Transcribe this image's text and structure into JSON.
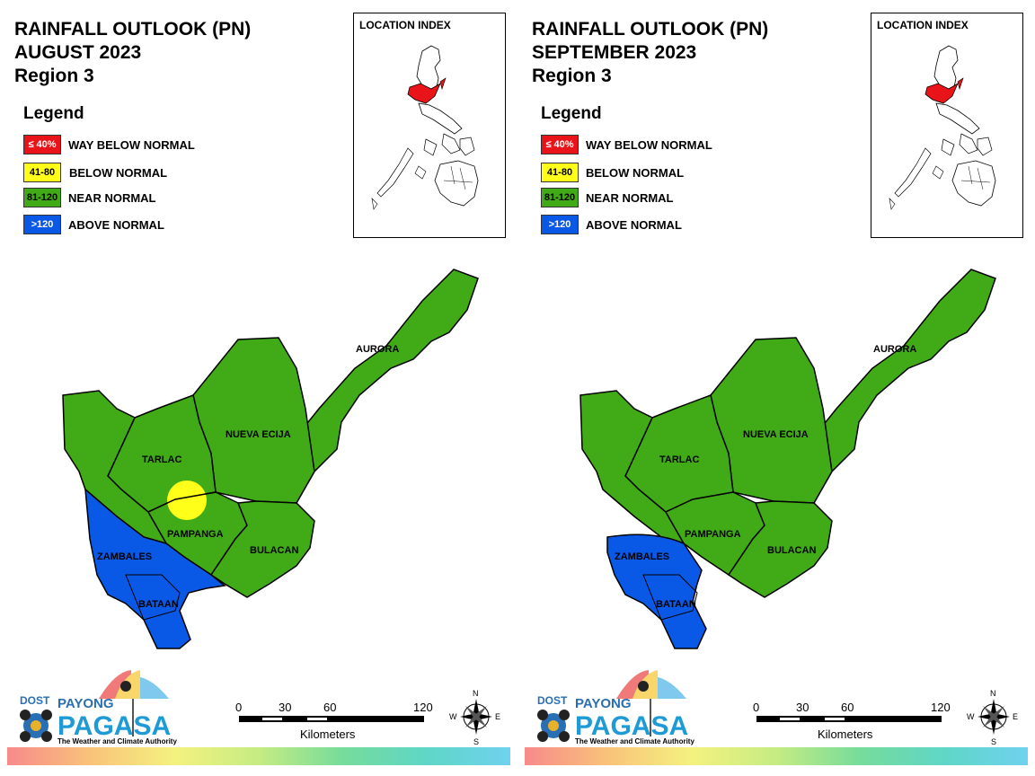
{
  "panels": [
    {
      "title": [
        "RAINFALL OUTLOOK (PN)",
        "AUGUST 2023",
        "Region 3"
      ],
      "legend_title": "Legend",
      "legend": [
        {
          "code": "≤ 40%",
          "label": "WAY BELOW NORMAL",
          "color": "#e8141a",
          "text_color": "#ffffff"
        },
        {
          "code": "41-80",
          "label": "BELOW NORMAL",
          "color": "#ffff1a",
          "text_color": "#000000"
        },
        {
          "code": "81-120",
          "label": "NEAR NORMAL",
          "color": "#41ab17",
          "text_color": "#000000"
        },
        {
          "code": ">120",
          "label": "ABOVE NORMAL",
          "color": "#0a59e6",
          "text_color": "#ffffff"
        }
      ],
      "location_index": "LOCATION INDEX",
      "provinces": [
        "AURORA",
        "NUEVA ECIJA",
        "TARLAC",
        "PAMPANGA",
        "BULACAN",
        "ZAMBALES",
        "BATAAN"
      ],
      "logo": {
        "dost": "DOST",
        "payong": "PAYONG",
        "pagasa": "PAGASA",
        "tagline": "The Weather and Climate Authority"
      },
      "scale": {
        "ticks": [
          "0",
          "30",
          "60",
          "120"
        ],
        "units": "Kilometers"
      },
      "compass": {
        "n": "N",
        "s": "S",
        "e": "E",
        "w": "W"
      }
    },
    {
      "title": [
        "RAINFALL OUTLOOK (PN)",
        "SEPTEMBER 2023",
        "Region 3"
      ],
      "legend_title": "Legend",
      "legend": [
        {
          "code": "≤ 40%",
          "label": "WAY BELOW NORMAL",
          "color": "#e8141a",
          "text_color": "#ffffff"
        },
        {
          "code": "41-80",
          "label": "BELOW NORMAL",
          "color": "#ffff1a",
          "text_color": "#000000"
        },
        {
          "code": "81-120",
          "label": "NEAR NORMAL",
          "color": "#41ab17",
          "text_color": "#000000"
        },
        {
          "code": ">120",
          "label": "ABOVE NORMAL",
          "color": "#0a59e6",
          "text_color": "#ffffff"
        }
      ],
      "location_index": "LOCATION INDEX",
      "provinces": [
        "AURORA",
        "NUEVA ECIJA",
        "TARLAC",
        "PAMPANGA",
        "BULACAN",
        "ZAMBALES",
        "BATAAN"
      ],
      "logo": {
        "dost": "DOST",
        "payong": "PAYONG",
        "pagasa": "PAGASA",
        "tagline": "The Weather and Climate Authority"
      },
      "scale": {
        "ticks": [
          "0",
          "30",
          "60",
          "120"
        ],
        "units": "Kilometers"
      },
      "compass": {
        "n": "N",
        "s": "S",
        "e": "E",
        "w": "W"
      }
    }
  ]
}
